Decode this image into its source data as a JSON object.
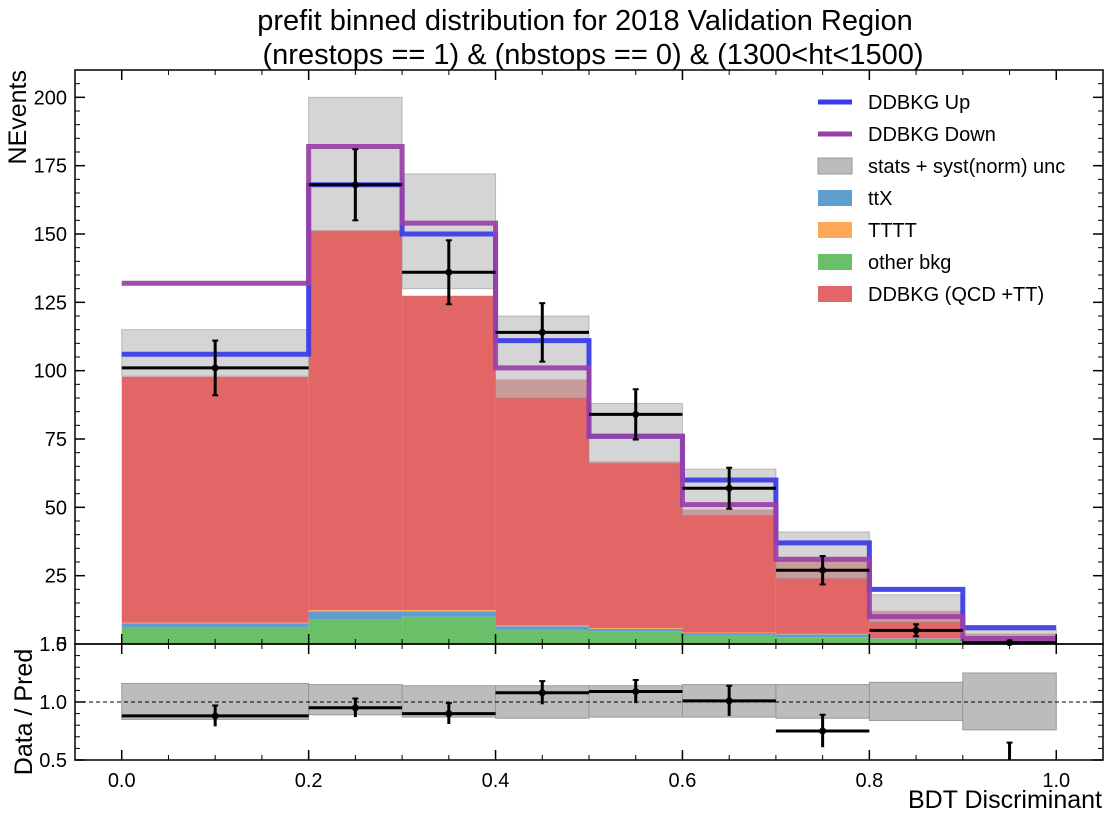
{
  "chart_data": {
    "type": "bar",
    "title": "prefit binned distribution for 2018 Validation Region",
    "subtitle": "(nrestops == 1) & (nbstops == 0) & (1300<ht<1500)",
    "xlabel": "BDT Discriminant",
    "ylabel_main": "NEvents",
    "ylabel_ratio": "Data / Pred",
    "xlim": [
      -0.05,
      1.05
    ],
    "ylim_main": [
      0,
      210
    ],
    "ylim_ratio": [
      0.5,
      1.5
    ],
    "x_ticks": [
      0.0,
      0.2,
      0.4,
      0.6,
      0.8,
      1.0
    ],
    "y_ticks_main": [
      25,
      50,
      75,
      100,
      125,
      150,
      175,
      200
    ],
    "y_ticks_ratio": [
      0.5,
      1.0
    ],
    "x_tick_labels": [
      "0.0",
      "0.2",
      "0.4",
      "0.6",
      "0.8",
      "1.0"
    ],
    "y_tick_labels_main": [
      "25",
      "50",
      "75",
      "100",
      "125",
      "150",
      "175",
      "200"
    ],
    "y_tick_labels_ratio": [
      "0.5",
      "1.0"
    ],
    "overlap_label_main": "1.5",
    "overlap_label_ratio": "0",
    "bin_edges": [
      0.0,
      0.2,
      0.3,
      0.4,
      0.5,
      0.6,
      0.7,
      0.8,
      0.9,
      1.0
    ],
    "legend_position": "upper-right",
    "series": [
      {
        "name": "other bkg",
        "kind": "stack",
        "color": "#6abf69",
        "values": [
          6,
          9,
          10,
          5,
          4.5,
          3,
          2.5,
          1.5,
          0.5
        ]
      },
      {
        "name": "ttX",
        "kind": "stack",
        "color": "#5f9fcf",
        "values": [
          1.5,
          3,
          2,
          1.5,
          1,
          1,
          1,
          0.5,
          0.2
        ]
      },
      {
        "name": "TTTT",
        "kind": "stack",
        "color": "#ffa85a",
        "values": [
          0.3,
          0.4,
          0.4,
          0.3,
          0.3,
          0.2,
          0.2,
          0.1,
          0.1
        ]
      },
      {
        "name": "DDBKG (QCD +TT)",
        "kind": "stack",
        "color": "#e36666",
        "values": [
          90,
          139,
          115,
          90,
          61,
          45,
          27,
          10,
          3
        ]
      },
      {
        "name": "stats + syst(norm) unc",
        "kind": "band",
        "color": "#bcbcbc",
        "low": [
          98,
          151,
          130,
          90,
          66,
          47,
          24,
          8,
          0.5
        ],
        "high": [
          115,
          200,
          172,
          120,
          88,
          64,
          41,
          18,
          5
        ]
      },
      {
        "name": "DDBKG Up",
        "kind": "step",
        "color": "#3a3ae8",
        "values": [
          106,
          168,
          150,
          111,
          76,
          60,
          37,
          20,
          6
        ]
      },
      {
        "name": "DDBKG Down",
        "kind": "step",
        "color": "#9a3fa8",
        "values": [
          132,
          182,
          154,
          101,
          76,
          51,
          31,
          10,
          2
        ]
      },
      {
        "name": "Data",
        "kind": "points",
        "color": "#000000",
        "values": [
          101,
          168,
          136,
          114,
          84,
          57,
          27,
          5,
          0.5
        ],
        "errors": [
          10,
          13,
          11.7,
          10.7,
          9.2,
          7.5,
          5.2,
          2.2,
          0.7
        ]
      }
    ],
    "ratio": {
      "band_low": [
        0.85,
        0.89,
        0.87,
        0.86,
        0.87,
        0.87,
        0.86,
        0.84,
        0.76
      ],
      "band_high": [
        1.16,
        1.15,
        1.14,
        1.14,
        1.14,
        1.15,
        1.15,
        1.17,
        1.25
      ],
      "values": [
        0.88,
        0.95,
        0.9,
        1.08,
        1.09,
        1.01,
        0.75,
        null,
        0.47
      ],
      "errors": [
        0.09,
        0.08,
        0.09,
        0.1,
        0.1,
        0.13,
        0.14,
        null,
        0.18
      ],
      "reference": 1.0
    }
  },
  "legend": [
    {
      "label": "DDBKG Up",
      "type": "line",
      "color": "#3a3ae8"
    },
    {
      "label": "DDBKG Down",
      "type": "line",
      "color": "#9a3fa8"
    },
    {
      "label": "stats + syst(norm) unc",
      "type": "patch",
      "color": "#bcbcbc"
    },
    {
      "label": "ttX",
      "type": "patch",
      "color": "#5f9fcf"
    },
    {
      "label": "TTTT",
      "type": "patch",
      "color": "#ffa85a"
    },
    {
      "label": "other bkg",
      "type": "patch",
      "color": "#6abf69"
    },
    {
      "label": "DDBKG (QCD +TT)",
      "type": "patch",
      "color": "#e36666"
    }
  ]
}
